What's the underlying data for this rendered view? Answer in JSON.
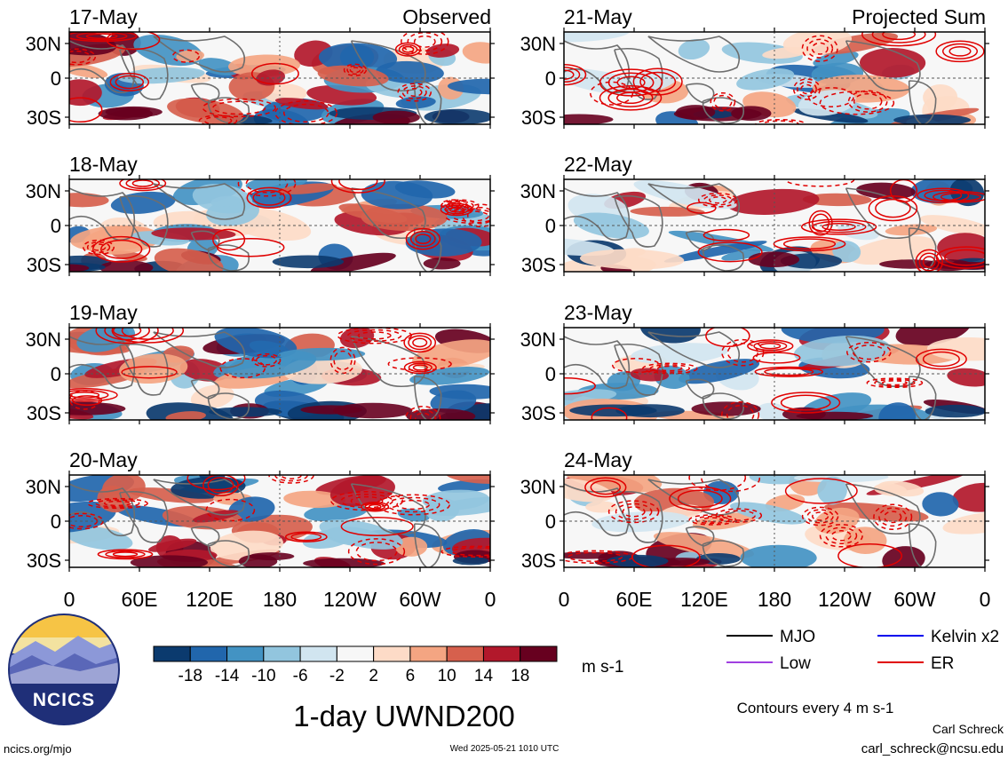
{
  "chart_data": {
    "type": "heatmap",
    "variable": "1-day UWND200",
    "units": "m s-1",
    "contour_note": "Contours every 4 m s-1",
    "columns": [
      {
        "title": "Observed",
        "dates": [
          "17-May",
          "18-May",
          "19-May",
          "20-May"
        ]
      },
      {
        "title": "Projected Sum",
        "dates": [
          "21-May",
          "22-May",
          "23-May",
          "24-May"
        ]
      }
    ],
    "lon_ticks": [
      "0",
      "60E",
      "120E",
      "180",
      "120W",
      "60W",
      "0"
    ],
    "lat_ticks": [
      "30N",
      "0",
      "30S"
    ],
    "lon_range": [
      0,
      360
    ],
    "lat_range": [
      -40,
      40
    ],
    "colorbar": {
      "labels": [
        "-18",
        "-14",
        "-10",
        "-6",
        "-2",
        "2",
        "6",
        "10",
        "14",
        "18"
      ],
      "colors": [
        "#0b3a6e",
        "#2166ac",
        "#4393c3",
        "#92c5de",
        "#d1e5f0",
        "#f7f7f7",
        "#fddbc7",
        "#f4a582",
        "#d6604d",
        "#b2182b",
        "#67001f"
      ]
    },
    "legend": [
      {
        "name": "MJO",
        "color": "#000000"
      },
      {
        "name": "Kelvin x2",
        "color": "#0000ee"
      },
      {
        "name": "Low",
        "color": "#a040e0"
      },
      {
        "name": "ER",
        "color": "#e00000"
      }
    ]
  },
  "logo": {
    "text": "NCICS"
  },
  "footer": {
    "site": "ncics.org/mjo",
    "timestamp": "Wed 2025-05-21 1010 UTC",
    "author": "Carl Schreck",
    "email": "carl_schreck@ncsu.edu"
  }
}
